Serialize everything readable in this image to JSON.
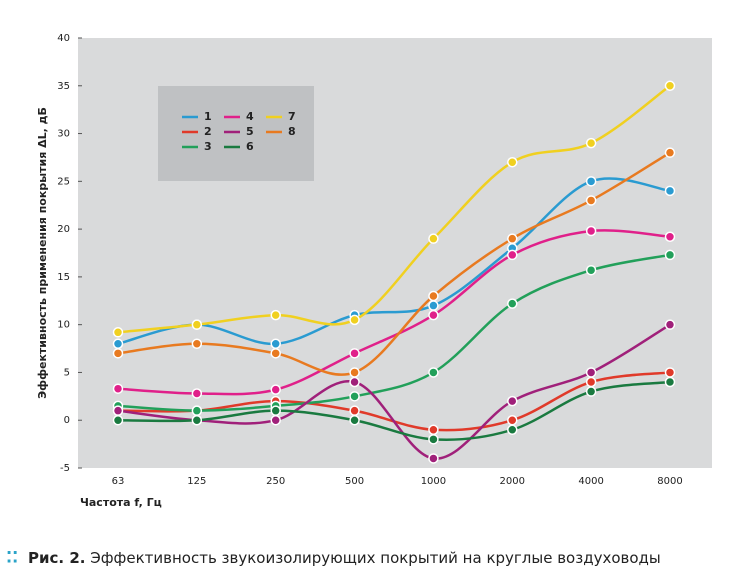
{
  "chart_data": {
    "type": "line",
    "y_label": "Эффективность применения покрытия ΔL, дБ",
    "x_label": "Частота f, Гц",
    "categories": [
      "63",
      "125",
      "250",
      "500",
      "1000",
      "2000",
      "4000",
      "8000"
    ],
    "ylim": [
      -5,
      40
    ],
    "yticks": [
      -5,
      0,
      5,
      10,
      15,
      20,
      25,
      30,
      35,
      40
    ],
    "grid": false,
    "series": [
      {
        "name": "1",
        "color": "#2a9bd1",
        "values": [
          8,
          10,
          8,
          11,
          12,
          18,
          25,
          24
        ]
      },
      {
        "name": "2",
        "color": "#e03a2a",
        "values": [
          1,
          1,
          2,
          1,
          -1,
          0,
          4,
          5
        ]
      },
      {
        "name": "3",
        "color": "#22a05a",
        "values": [
          1.5,
          1,
          1.5,
          2.5,
          5,
          12.2,
          15.7,
          17.3
        ]
      },
      {
        "name": "4",
        "color": "#e0208a",
        "values": [
          3.3,
          2.8,
          3.2,
          7,
          11,
          17.3,
          19.8,
          19.2
        ]
      },
      {
        "name": "5",
        "color": "#a0207a",
        "values": [
          1,
          0,
          0,
          4,
          -4,
          2,
          5,
          10
        ]
      },
      {
        "name": "6",
        "color": "#1a7a40",
        "values": [
          0,
          0,
          1,
          0,
          -2,
          -1,
          3,
          4
        ]
      },
      {
        "name": "7",
        "color": "#f0d020",
        "values": [
          9.2,
          10,
          11,
          10.5,
          19,
          27,
          29,
          35
        ]
      },
      {
        "name": "8",
        "color": "#e87a20",
        "values": [
          7,
          8,
          7,
          5,
          13,
          19,
          23,
          28
        ]
      }
    ]
  },
  "caption": {
    "label": "Рис. 2.",
    "text": "Эффективность звукоизолирующих покрытий на круглые воздуховоды"
  }
}
